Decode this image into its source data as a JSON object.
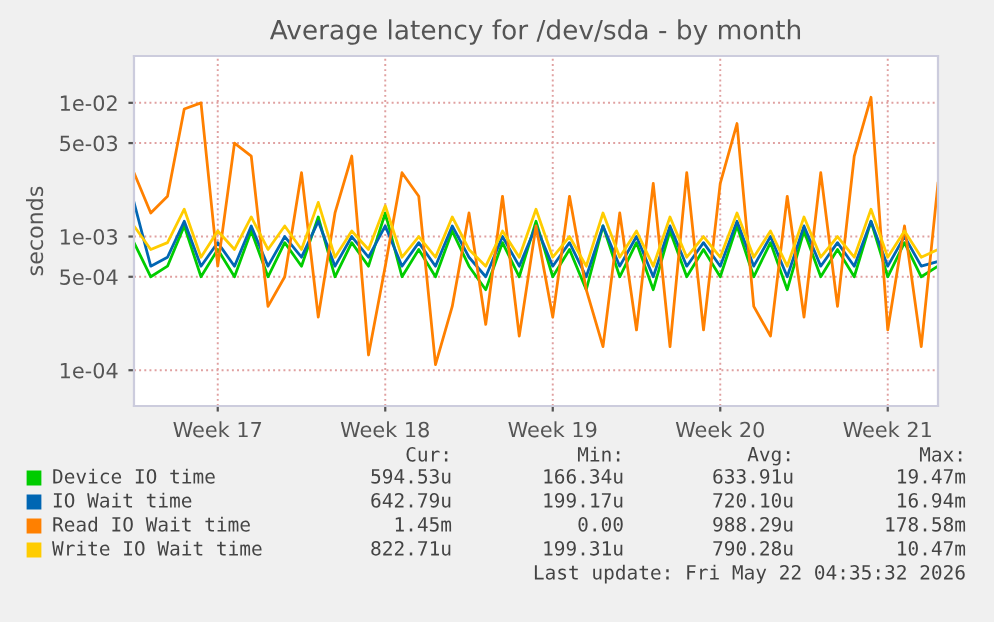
{
  "chart_data": {
    "type": "line",
    "title": "Average latency for /dev/sda - by month",
    "ylabel": "seconds",
    "log": true,
    "grid": true,
    "legend": "bottom",
    "marker": "none",
    "line_style": "solid",
    "ylim": [
      5.4e-05,
      0.0224
    ],
    "yticks": [
      {
        "value": 0.0001,
        "label": "1e-04"
      },
      {
        "value": 0.0005,
        "label": "5e-04"
      },
      {
        "value": 0.001,
        "label": "1e-03"
      },
      {
        "value": 0.005,
        "label": "5e-03"
      },
      {
        "value": 0.01,
        "label": "1e-02"
      }
    ],
    "categories": [
      null,
      null,
      null,
      null,
      null,
      "Week 17",
      null,
      null,
      null,
      null,
      null,
      null,
      null,
      null,
      null,
      "Week 18",
      null,
      null,
      null,
      null,
      null,
      null,
      null,
      null,
      null,
      "Week 19",
      null,
      null,
      null,
      null,
      null,
      null,
      null,
      null,
      null,
      "Week 20",
      null,
      null,
      null,
      null,
      null,
      null,
      null,
      null,
      null,
      "Week 21",
      null,
      null,
      null
    ],
    "series": [
      {
        "name": "Device IO time",
        "color": "#00cc00",
        "values": [
          0.0009,
          0.0005,
          0.0006,
          0.0012,
          0.0005,
          0.0008,
          0.0005,
          0.0011,
          0.0005,
          0.0009,
          0.0006,
          0.0014,
          0.0005,
          0.0009,
          0.0006,
          0.0015,
          0.0005,
          0.0008,
          0.0005,
          0.0011,
          0.0006,
          0.0004,
          0.0009,
          0.0005,
          0.0013,
          0.0005,
          0.0008,
          0.0004,
          0.0012,
          0.0005,
          0.0009,
          0.0004,
          0.0011,
          0.0005,
          0.0008,
          0.0005,
          0.0012,
          0.0005,
          0.0009,
          0.0004,
          0.0011,
          0.0005,
          0.0008,
          0.0005,
          0.0013,
          0.0005,
          0.0009,
          0.0005,
          0.0006
        ]
      },
      {
        "name": "IO Wait time",
        "color": "#0066b3",
        "values": [
          0.0018,
          0.0006,
          0.0007,
          0.0013,
          0.0006,
          0.0009,
          0.0006,
          0.0012,
          0.0006,
          0.001,
          0.0007,
          0.0013,
          0.0006,
          0.001,
          0.0007,
          0.0012,
          0.0006,
          0.0009,
          0.0006,
          0.0012,
          0.0007,
          0.0005,
          0.001,
          0.0006,
          0.0012,
          0.0006,
          0.0009,
          0.0005,
          0.0012,
          0.0006,
          0.001,
          0.0005,
          0.0012,
          0.0006,
          0.0009,
          0.0006,
          0.0013,
          0.0006,
          0.001,
          0.0005,
          0.0012,
          0.0006,
          0.0009,
          0.0006,
          0.0013,
          0.0006,
          0.001,
          0.0006,
          0.00065
        ]
      },
      {
        "name": "Read IO Wait time",
        "color": "#ff8000",
        "values": [
          0.003,
          0.0015,
          0.002,
          0.009,
          0.01,
          0.0006,
          0.005,
          0.004,
          0.0003,
          0.0005,
          0.003,
          0.00025,
          0.0015,
          0.004,
          0.00013,
          0.0006,
          0.003,
          0.002,
          0.00011,
          0.0003,
          0.0015,
          0.00022,
          0.002,
          0.00018,
          0.0012,
          0.00025,
          0.002,
          0.0004,
          0.00015,
          0.0015,
          0.0002,
          0.0025,
          0.00015,
          0.003,
          0.0002,
          0.0025,
          0.007,
          0.0003,
          0.00018,
          0.002,
          0.00025,
          0.003,
          0.0003,
          0.004,
          0.011,
          0.0002,
          0.0012,
          0.00015,
          0.0025
        ]
      },
      {
        "name": "Write IO Wait time",
        "color": "#ffcc00",
        "values": [
          0.0012,
          0.0008,
          0.0009,
          0.0016,
          0.0007,
          0.0011,
          0.0008,
          0.0014,
          0.0008,
          0.0012,
          0.0008,
          0.0018,
          0.0007,
          0.0011,
          0.0008,
          0.0017,
          0.0007,
          0.001,
          0.0007,
          0.0014,
          0.0008,
          0.0006,
          0.0011,
          0.0007,
          0.0016,
          0.0007,
          0.001,
          0.0006,
          0.0015,
          0.0007,
          0.0011,
          0.0006,
          0.0014,
          0.0007,
          0.001,
          0.0007,
          0.0015,
          0.0007,
          0.0011,
          0.0006,
          0.0014,
          0.0007,
          0.001,
          0.0007,
          0.0016,
          0.0007,
          0.0011,
          0.0007,
          0.0008
        ]
      }
    ],
    "annotations": [
      "Cur:",
      "Min:",
      "Avg:",
      "Max:",
      "594.53u",
      "166.34u",
      "633.91u",
      "19.47m",
      "642.79u",
      "199.17u",
      "720.10u",
      "16.94m",
      "1.45m",
      "0.00",
      "988.29u",
      "178.58m",
      "822.71u",
      "199.31u",
      "790.28u",
      "10.47m",
      "Last update: Fri May 22 04:35:32 2026"
    ]
  }
}
